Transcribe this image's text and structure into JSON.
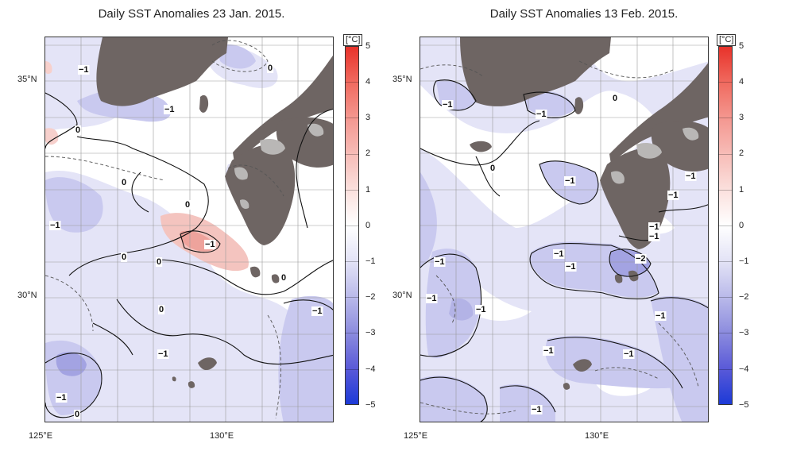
{
  "panels": [
    {
      "title": "Daily SST Anomalies 23 Jan. 2015.",
      "lat_labels": [
        "35°N",
        "30°N"
      ],
      "lon_labels": [
        "125°E",
        "130°E"
      ],
      "contour_labels": [
        "−1",
        "0",
        "−1",
        "0",
        "0",
        "0",
        "−1",
        "−1",
        "0",
        "0",
        "0",
        "0",
        "−1",
        "−1",
        "0",
        "−1"
      ],
      "colorbar": {
        "unit": "[°C]",
        "ticks": [
          "5",
          "4",
          "3",
          "2",
          "1",
          "0",
          "−1",
          "−2",
          "−3",
          "−4",
          "−5"
        ]
      }
    },
    {
      "title": "Daily SST Anomalies 13 Feb. 2015.",
      "lat_labels": [
        "35°N",
        "30°N"
      ],
      "lon_labels": [
        "125°E",
        "130°E"
      ],
      "contour_labels": [
        "−1",
        "−1",
        "0",
        "0",
        "−1",
        "−1",
        "−1",
        "−1",
        "−1",
        "−2",
        "−1",
        "−1",
        "−1",
        "−1",
        "−1",
        "−1",
        "−1",
        "−1",
        "−1"
      ],
      "colorbar": {
        "unit": "[°C]",
        "ticks": [
          "5",
          "4",
          "3",
          "2",
          "1",
          "0",
          "−1",
          "−2",
          "−3",
          "−4",
          "−5"
        ]
      }
    }
  ],
  "colors": {
    "land": "#6e6563",
    "lakes": "#b9b7b6",
    "anomaly_pos_1": "#f4b6b0",
    "anomaly_neg_1": "#c9c9ef",
    "anomaly_neg_2": "#a3a3e2",
    "grid": "#9a9a9a"
  }
}
